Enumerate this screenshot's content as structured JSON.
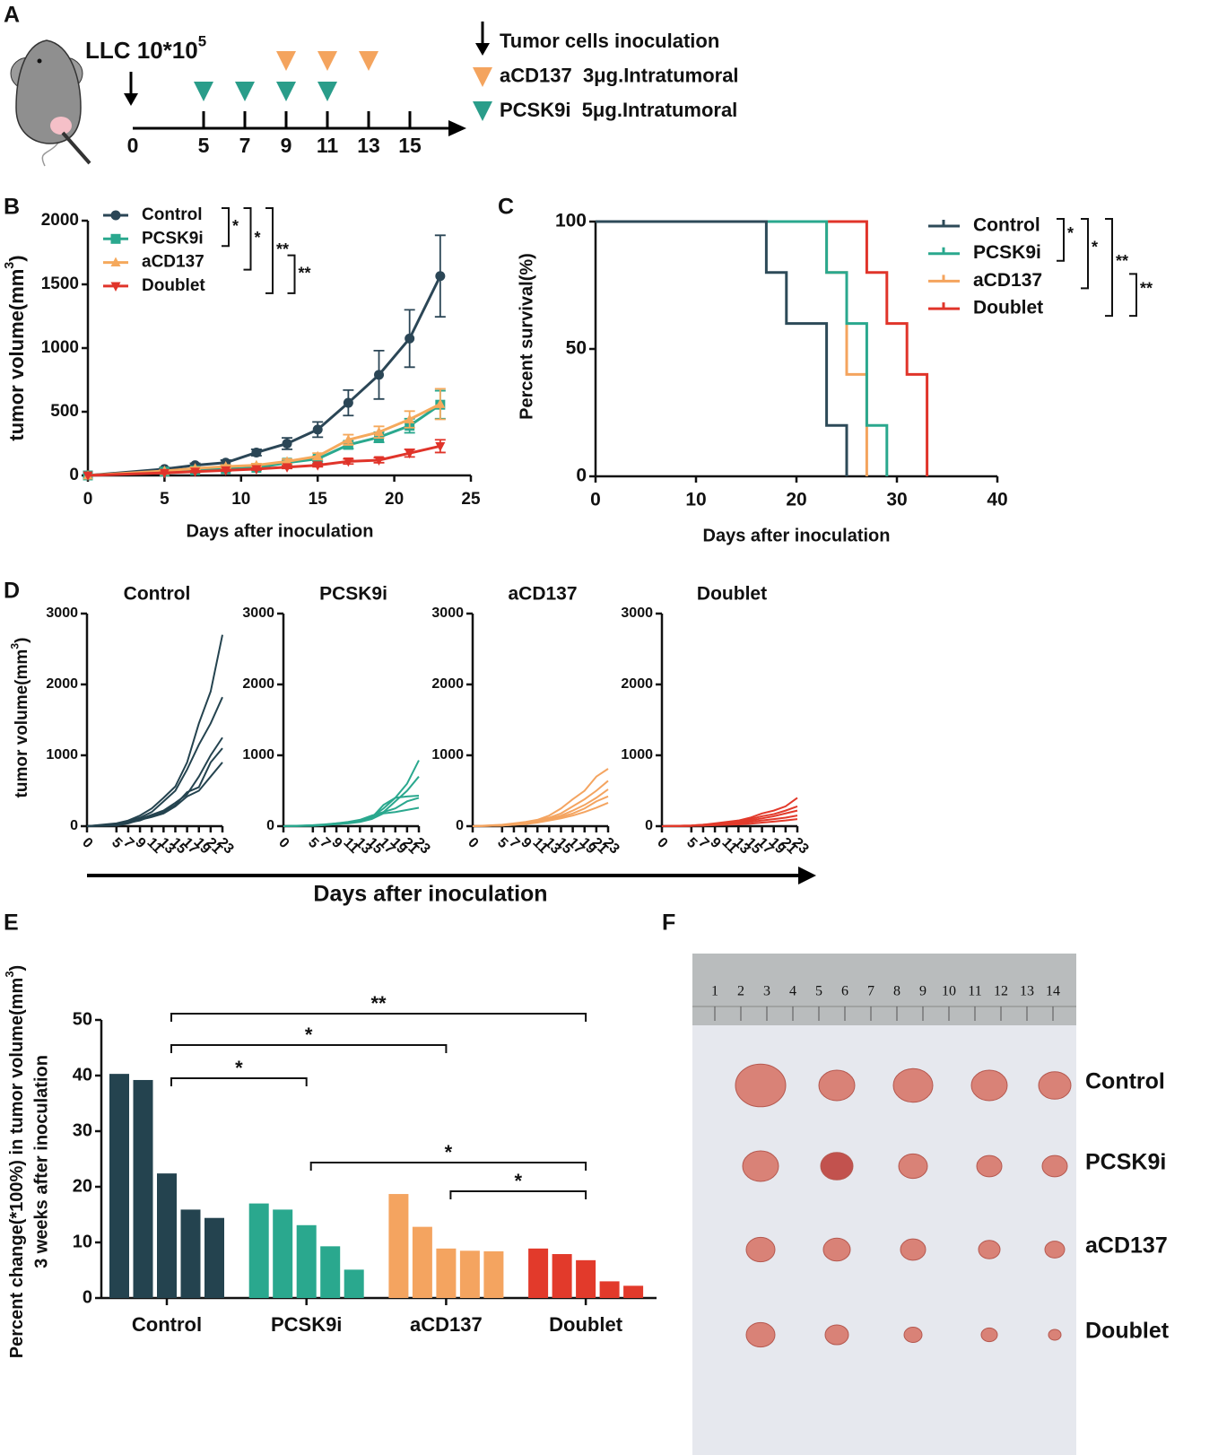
{
  "panel_a": {
    "label": "A",
    "title": [
      "LLC 10*10",
      "5"
    ],
    "timeline_days": [
      0,
      5,
      7,
      9,
      11,
      13,
      15
    ],
    "acd137_days": [
      9,
      11,
      13
    ],
    "pcsk9i_days": [
      5,
      7,
      9,
      11
    ],
    "acd137_color": "#f4a45e",
    "pcsk9i_color": "#2a9d8a",
    "legend": [
      "Tumor cells inoculation",
      "aCD137  3μg.Intratumoral",
      "PCSK9i  5μg.Intratumoral"
    ]
  },
  "panel_d": {
    "label": "D",
    "ylabel": [
      "tumor volume(mm",
      "3",
      ")"
    ],
    "xlabel": "Days after inoculation"
  },
  "panel_f": {
    "label": "F",
    "groups": [
      "Control",
      "PCSK9i",
      "aCD137",
      "Doublet"
    ],
    "ruler": [
      1,
      2,
      3,
      4,
      5,
      6,
      7,
      8,
      9,
      10,
      11,
      12,
      13,
      14
    ]
  },
  "chart_data": [
    {
      "type": "line",
      "panel": "B",
      "xlabel": "Days after inoculation",
      "ylabel": [
        "tumor volume(mm",
        "3",
        ")"
      ],
      "x": [
        0,
        5,
        7,
        9,
        11,
        13,
        15,
        17,
        19,
        21,
        23
      ],
      "xlim": [
        0,
        25
      ],
      "xticks": [
        0,
        5,
        10,
        15,
        20,
        25
      ],
      "ylim": [
        0,
        2000
      ],
      "yticks": [
        0,
        500,
        1000,
        1500,
        2000
      ],
      "series": [
        {
          "name": "Control",
          "color": "#2b4656",
          "marker": "circle",
          "values": [
            0,
            50,
            80,
            100,
            180,
            250,
            360,
            570,
            790,
            1075,
            1565
          ],
          "errors": [
            0,
            12,
            15,
            20,
            25,
            45,
            60,
            100,
            190,
            225,
            320
          ]
        },
        {
          "name": "PCSK9i",
          "color": "#2aa88e",
          "marker": "square",
          "values": [
            0,
            30,
            40,
            50,
            60,
            100,
            130,
            240,
            300,
            390,
            555
          ],
          "errors": [
            0,
            6,
            8,
            10,
            12,
            15,
            20,
            30,
            40,
            55,
            110
          ]
        },
        {
          "name": "aCD137",
          "color": "#f5a95c",
          "marker": "triangle-up",
          "values": [
            0,
            35,
            55,
            70,
            80,
            110,
            150,
            280,
            340,
            440,
            560
          ],
          "errors": [
            0,
            8,
            10,
            12,
            12,
            18,
            25,
            40,
            45,
            65,
            120
          ]
        },
        {
          "name": "Doublet",
          "color": "#e0342a",
          "marker": "triangle-down",
          "values": [
            0,
            20,
            30,
            40,
            50,
            65,
            80,
            110,
            120,
            175,
            230
          ],
          "errors": [
            0,
            5,
            6,
            6,
            8,
            10,
            12,
            20,
            20,
            30,
            50
          ]
        }
      ],
      "comparisons": [
        {
          "from": "Control",
          "to": "PCSK9i",
          "label": "*"
        },
        {
          "from": "Control",
          "to": "aCD137",
          "label": "*"
        },
        {
          "from": "Control",
          "to": "Doublet",
          "label": "**"
        },
        {
          "from": "aCD137",
          "to": "Doublet",
          "label": "**"
        }
      ]
    },
    {
      "type": "step",
      "panel": "C",
      "xlabel": "Days after inoculation",
      "ylabel": "Percent survival(%)",
      "xlim": [
        0,
        40
      ],
      "xticks": [
        0,
        10,
        20,
        30,
        40
      ],
      "ylim": [
        0,
        100
      ],
      "yticks": [
        0,
        50,
        100
      ],
      "series": [
        {
          "name": "Control",
          "color": "#2d4a58",
          "x": [
            0,
            17,
            19,
            23,
            25
          ],
          "values": [
            100,
            80,
            60,
            20,
            0
          ]
        },
        {
          "name": "PCSK9i",
          "color": "#2aa88e",
          "x": [
            0,
            23,
            25,
            27,
            29
          ],
          "values": [
            100,
            80,
            60,
            20,
            0
          ]
        },
        {
          "name": "aCD137",
          "color": "#f4a45e",
          "x": [
            0,
            23,
            25,
            27
          ],
          "values": [
            100,
            80,
            40,
            0
          ]
        },
        {
          "name": "Doublet",
          "color": "#e0342a",
          "x": [
            0,
            27,
            29,
            31,
            33
          ],
          "values": [
            100,
            80,
            60,
            40,
            0
          ]
        }
      ],
      "comparisons": [
        {
          "from": "Control",
          "to": "PCSK9i",
          "label": "*"
        },
        {
          "from": "Control",
          "to": "aCD137",
          "label": "*"
        },
        {
          "from": "Control",
          "to": "Doublet",
          "label": "**"
        },
        {
          "from": "aCD137",
          "to": "Doublet",
          "label": "**"
        }
      ]
    },
    {
      "type": "line",
      "title": "Control",
      "x": [
        0,
        5,
        7,
        9,
        11,
        13,
        15,
        17,
        19,
        21,
        23
      ],
      "xlim": [
        0,
        23
      ],
      "xticks": [
        0,
        5,
        7,
        9,
        11,
        13,
        15,
        17,
        19,
        21,
        23
      ],
      "ylim": [
        0,
        3000
      ],
      "yticks": [
        0,
        1000,
        2000,
        3000
      ],
      "color": "#24434f",
      "series": [
        {
          "values": [
            0,
            40,
            80,
            150,
            250,
            400,
            560,
            900,
            1450,
            1900,
            2700
          ]
        },
        {
          "values": [
            0,
            30,
            70,
            120,
            200,
            350,
            500,
            800,
            1150,
            1450,
            1820
          ]
        },
        {
          "values": [
            0,
            20,
            60,
            100,
            160,
            220,
            330,
            450,
            700,
            1000,
            1250
          ]
        },
        {
          "values": [
            0,
            20,
            50,
            80,
            150,
            200,
            300,
            480,
            550,
            900,
            1100
          ]
        },
        {
          "values": [
            0,
            10,
            40,
            90,
            130,
            180,
            280,
            420,
            500,
            700,
            900
          ]
        }
      ]
    },
    {
      "type": "line",
      "title": "PCSK9i",
      "x": [
        0,
        5,
        7,
        9,
        11,
        13,
        15,
        17,
        19,
        21,
        23
      ],
      "xlim": [
        0,
        23
      ],
      "xticks": [
        0,
        5,
        7,
        9,
        11,
        13,
        15,
        17,
        19,
        21,
        23
      ],
      "ylim": [
        0,
        3000
      ],
      "yticks": [
        0,
        1000,
        2000,
        3000
      ],
      "color": "#2aa88e",
      "series": [
        {
          "values": [
            0,
            10,
            20,
            30,
            50,
            80,
            130,
            250,
            400,
            600,
            930
          ]
        },
        {
          "values": [
            0,
            10,
            20,
            40,
            60,
            90,
            150,
            200,
            350,
            500,
            700
          ]
        },
        {
          "values": [
            0,
            15,
            25,
            40,
            50,
            80,
            120,
            300,
            400,
            420,
            430
          ]
        },
        {
          "values": [
            0,
            10,
            20,
            30,
            50,
            70,
            110,
            200,
            250,
            350,
            400
          ]
        },
        {
          "values": [
            0,
            5,
            15,
            30,
            40,
            60,
            100,
            180,
            200,
            230,
            260
          ]
        }
      ]
    },
    {
      "type": "line",
      "title": "aCD137",
      "x": [
        0,
        5,
        7,
        9,
        11,
        13,
        15,
        17,
        19,
        21,
        23
      ],
      "xlim": [
        0,
        23
      ],
      "xticks": [
        0,
        5,
        7,
        9,
        11,
        13,
        15,
        17,
        19,
        21,
        23
      ],
      "ylim": [
        0,
        3000
      ],
      "yticks": [
        0,
        1000,
        2000,
        3000
      ],
      "color": "#f4a460",
      "series": [
        {
          "values": [
            0,
            20,
            40,
            60,
            90,
            150,
            250,
            380,
            500,
            700,
            810
          ]
        },
        {
          "values": [
            0,
            15,
            30,
            50,
            80,
            120,
            180,
            280,
            380,
            500,
            640
          ]
        },
        {
          "values": [
            0,
            10,
            30,
            50,
            70,
            100,
            150,
            220,
            300,
            400,
            520
          ]
        },
        {
          "values": [
            0,
            10,
            20,
            40,
            60,
            90,
            130,
            180,
            250,
            350,
            420
          ]
        },
        {
          "values": [
            0,
            10,
            20,
            30,
            50,
            80,
            110,
            150,
            200,
            260,
            330
          ]
        }
      ]
    },
    {
      "type": "line",
      "title": "Doublet",
      "x": [
        0,
        5,
        7,
        9,
        11,
        13,
        15,
        17,
        19,
        21,
        23
      ],
      "xlim": [
        0,
        23
      ],
      "xticks": [
        0,
        5,
        7,
        9,
        11,
        13,
        15,
        17,
        19,
        21,
        23
      ],
      "ylim": [
        0,
        3000
      ],
      "yticks": [
        0,
        1000,
        2000,
        3000
      ],
      "color": "#e23a2b",
      "series": [
        {
          "values": [
            0,
            10,
            20,
            40,
            60,
            80,
            120,
            180,
            220,
            280,
            400
          ]
        },
        {
          "values": [
            0,
            10,
            20,
            30,
            50,
            70,
            100,
            140,
            170,
            220,
            280
          ]
        },
        {
          "values": [
            0,
            5,
            15,
            25,
            40,
            55,
            80,
            110,
            140,
            180,
            220
          ]
        },
        {
          "values": [
            0,
            5,
            10,
            20,
            30,
            40,
            60,
            80,
            100,
            120,
            150
          ]
        },
        {
          "values": [
            0,
            5,
            10,
            15,
            20,
            25,
            35,
            50,
            65,
            80,
            100
          ]
        }
      ]
    },
    {
      "type": "bar",
      "panel": "E",
      "ylabel": [
        [
          "Percent change(*100%) in tumor volume(mm",
          "3",
          ")"
        ],
        "3 weeks after inoculation"
      ],
      "ylim": [
        0,
        50
      ],
      "yticks": [
        0,
        10,
        20,
        30,
        40,
        50
      ],
      "groups": [
        {
          "name": "Control",
          "color": "#24434f",
          "values": [
            40.3,
            39.2,
            22.4,
            15.9,
            14.4
          ]
        },
        {
          "name": "PCSK9i",
          "color": "#2aa88e",
          "values": [
            17,
            15.9,
            13.1,
            9.3,
            5.1
          ]
        },
        {
          "name": "aCD137",
          "color": "#f4a460",
          "values": [
            18.7,
            12.8,
            8.9,
            8.5,
            8.4
          ]
        },
        {
          "name": "Doublet",
          "color": "#e23a2b",
          "values": [
            8.9,
            7.9,
            6.8,
            3,
            2.2
          ]
        }
      ],
      "comparisons": [
        {
          "from": "Control",
          "to": "Doublet",
          "label": "**"
        },
        {
          "from": "Control",
          "to": "aCD137",
          "label": "*"
        },
        {
          "from": "Control",
          "to": "PCSK9i",
          "label": "*"
        },
        {
          "from": "PCSK9i",
          "to": "Doublet",
          "label": "*"
        },
        {
          "from": "aCD137",
          "to": "Doublet",
          "label": "*"
        }
      ]
    }
  ]
}
